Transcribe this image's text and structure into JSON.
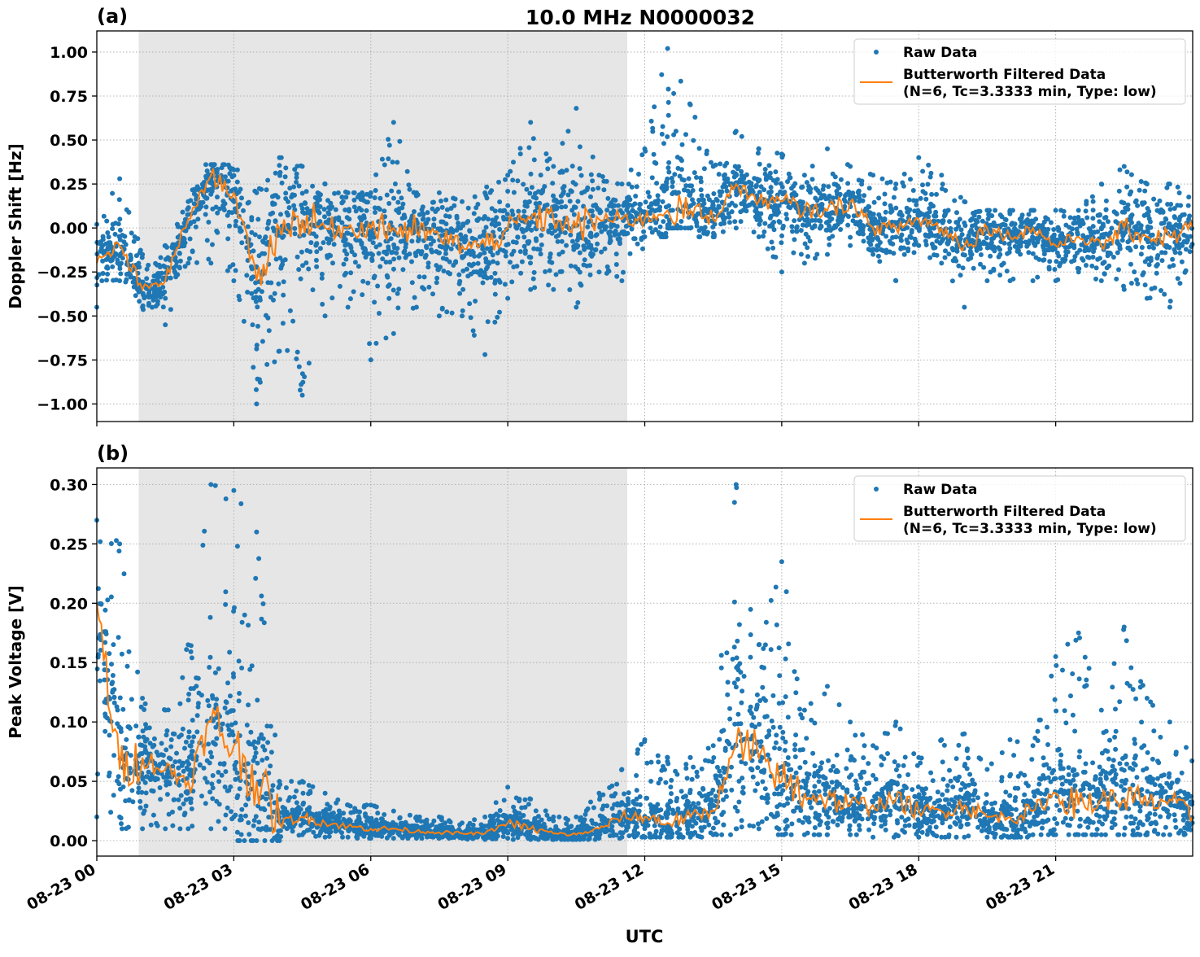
{
  "figure": {
    "title": "10.0 MHz N0000032",
    "xlabel": "UTC"
  },
  "colors": {
    "raw": "#1f77b4",
    "filtered": "#ff7f0e",
    "shade": "#e6e6e6",
    "grid": "#b0b0b0"
  },
  "chart_data": [
    {
      "panel_label": "(a)",
      "type": "scatter+line",
      "ylabel": "Doppler Shift [Hz]",
      "ylim": [
        -1.1,
        1.12
      ],
      "yticks": [
        "−1.00",
        "−0.75",
        "−0.50",
        "−0.25",
        "0.00",
        "0.25",
        "0.50",
        "0.75",
        "1.00"
      ],
      "ytick_values": [
        -1,
        -0.75,
        -0.5,
        -0.25,
        0,
        0.25,
        0.5,
        0.75,
        1
      ],
      "xlim": [
        "08-23 00:00",
        "08-24 00:00"
      ],
      "xticks": [
        "08-23 00",
        "08-23 03",
        "08-23 06",
        "08-23 09",
        "08-23 12",
        "08-23 15",
        "08-23 18",
        "08-23 21"
      ],
      "grid": true,
      "shaded_span": [
        "08-23 00:55",
        "08-23 11:37"
      ],
      "legend": {
        "placement": "top-right",
        "entries": [
          "Raw Data",
          "Butterworth Filtered Data",
          "(N=6, Tc=3.3333 min, Type: low)"
        ]
      },
      "x": [
        "08-23 00:00",
        "08-23 00:30",
        "08-23 01:00",
        "08-23 01:30",
        "08-23 02:00",
        "08-23 02:30",
        "08-23 03:00",
        "08-23 03:30",
        "08-23 04:00",
        "08-23 04:30",
        "08-23 05:00",
        "08-23 05:30",
        "08-23 06:00",
        "08-23 06:30",
        "08-23 07:00",
        "08-23 07:30",
        "08-23 08:00",
        "08-23 08:30",
        "08-23 09:00",
        "08-23 09:30",
        "08-23 10:00",
        "08-23 10:30",
        "08-23 11:00",
        "08-23 11:30",
        "08-23 12:00",
        "08-23 12:30",
        "08-23 13:00",
        "08-23 13:30",
        "08-23 14:00",
        "08-23 14:30",
        "08-23 15:00",
        "08-23 15:30",
        "08-23 16:00",
        "08-23 16:30",
        "08-23 17:00",
        "08-23 17:30",
        "08-23 18:00",
        "08-23 18:30",
        "08-23 19:00",
        "08-23 19:30",
        "08-23 20:00",
        "08-23 20:30",
        "08-23 21:00",
        "08-23 21:30",
        "08-23 22:00",
        "08-23 22:30",
        "08-23 23:00",
        "08-23 23:30",
        "08-24 00:00"
      ],
      "series": [
        {
          "name": "Butterworth Filtered Data",
          "kind": "line",
          "values": [
            -0.2,
            -0.1,
            -0.35,
            -0.3,
            0.05,
            0.3,
            0.2,
            -0.3,
            0.0,
            0.05,
            0.0,
            0.0,
            0.0,
            0.0,
            -0.02,
            -0.05,
            -0.1,
            -0.1,
            0.0,
            0.05,
            0.05,
            0.0,
            0.05,
            0.05,
            0.05,
            0.1,
            0.1,
            0.05,
            0.25,
            0.15,
            0.15,
            0.1,
            0.1,
            0.15,
            0.0,
            0.0,
            0.05,
            0.0,
            -0.1,
            0.0,
            -0.05,
            0.0,
            -0.1,
            -0.05,
            -0.1,
            0.0,
            -0.05,
            -0.05,
            0.0
          ]
        },
        {
          "name": "Raw Data",
          "kind": "scatter-range",
          "min": [
            -0.45,
            -0.3,
            -0.45,
            -0.55,
            -0.2,
            -0.2,
            -0.3,
            -1.0,
            -0.7,
            -0.95,
            -0.5,
            -0.45,
            -0.75,
            -0.6,
            -0.45,
            -0.5,
            -0.5,
            -0.72,
            -0.4,
            -0.35,
            -0.35,
            -0.45,
            -0.25,
            -0.3,
            -0.05,
            0.0,
            0.0,
            -0.05,
            0.0,
            -0.05,
            -0.25,
            -0.2,
            -0.15,
            -0.1,
            -0.15,
            -0.3,
            -0.1,
            -0.2,
            -0.45,
            -0.3,
            -0.3,
            -0.3,
            -0.3,
            -0.25,
            -0.3,
            -0.35,
            -0.4,
            -0.45,
            -0.4
          ],
          "max": [
            0.02,
            0.28,
            -0.15,
            -0.1,
            0.15,
            0.36,
            0.33,
            0.2,
            0.4,
            0.35,
            0.25,
            0.2,
            0.2,
            0.6,
            0.2,
            0.2,
            0.15,
            0.2,
            0.3,
            0.6,
            0.35,
            0.68,
            0.3,
            0.25,
            0.45,
            1.02,
            0.7,
            0.35,
            0.55,
            0.45,
            0.42,
            0.3,
            0.45,
            0.35,
            0.3,
            0.25,
            0.4,
            0.3,
            0.15,
            0.1,
            0.1,
            0.1,
            0.1,
            0.1,
            0.25,
            0.35,
            0.25,
            0.25,
            0.2
          ]
        }
      ]
    },
    {
      "panel_label": "(b)",
      "type": "scatter+line",
      "ylabel": "Peak Voltage [V]",
      "ylim": [
        -0.013,
        0.314
      ],
      "yticks": [
        "0.00",
        "0.05",
        "0.10",
        "0.15",
        "0.20",
        "0.25",
        "0.30"
      ],
      "ytick_values": [
        0,
        0.05,
        0.1,
        0.15,
        0.2,
        0.25,
        0.3
      ],
      "xlim": [
        "08-23 00:00",
        "08-24 00:00"
      ],
      "xticks": [
        "08-23 00",
        "08-23 03",
        "08-23 06",
        "08-23 09",
        "08-23 12",
        "08-23 15",
        "08-23 18",
        "08-23 21"
      ],
      "grid": true,
      "shaded_span": [
        "08-23 00:55",
        "08-23 11:37"
      ],
      "legend": {
        "placement": "top-right",
        "entries": [
          "Raw Data",
          "Butterworth Filtered Data",
          "(N=6, Tc=3.3333 min, Type: low)"
        ]
      },
      "x": [
        "08-23 00:00",
        "08-23 00:30",
        "08-23 01:00",
        "08-23 01:30",
        "08-23 02:00",
        "08-23 02:30",
        "08-23 03:00",
        "08-23 03:30",
        "08-23 04:00",
        "08-23 04:30",
        "08-23 05:00",
        "08-23 05:30",
        "08-23 06:00",
        "08-23 06:30",
        "08-23 07:00",
        "08-23 07:30",
        "08-23 08:00",
        "08-23 08:30",
        "08-23 09:00",
        "08-23 09:30",
        "08-23 10:00",
        "08-23 10:30",
        "08-23 11:00",
        "08-23 11:30",
        "08-23 12:00",
        "08-23 12:30",
        "08-23 13:00",
        "08-23 13:30",
        "08-23 14:00",
        "08-23 14:30",
        "08-23 15:00",
        "08-23 15:30",
        "08-23 16:00",
        "08-23 16:30",
        "08-23 17:00",
        "08-23 17:30",
        "08-23 18:00",
        "08-23 18:30",
        "08-23 19:00",
        "08-23 19:30",
        "08-23 20:00",
        "08-23 20:30",
        "08-23 21:00",
        "08-23 21:30",
        "08-23 22:00",
        "08-23 22:30",
        "08-23 23:00",
        "08-23 23:30",
        "08-24 00:00"
      ],
      "series": [
        {
          "name": "Butterworth Filtered Data",
          "kind": "line",
          "values": [
            0.2,
            0.06,
            0.07,
            0.06,
            0.05,
            0.1,
            0.08,
            0.05,
            0.015,
            0.02,
            0.015,
            0.012,
            0.01,
            0.01,
            0.008,
            0.007,
            0.006,
            0.006,
            0.015,
            0.01,
            0.006,
            0.005,
            0.01,
            0.02,
            0.02,
            0.015,
            0.02,
            0.025,
            0.08,
            0.07,
            0.05,
            0.04,
            0.035,
            0.03,
            0.03,
            0.035,
            0.025,
            0.025,
            0.03,
            0.02,
            0.02,
            0.025,
            0.04,
            0.03,
            0.035,
            0.035,
            0.03,
            0.035,
            0.02
          ]
        },
        {
          "name": "Raw Data",
          "kind": "scatter-range",
          "min": [
            0.02,
            0.02,
            0.01,
            0.01,
            0.01,
            0.01,
            0.02,
            0.0,
            0.0,
            0.005,
            0.003,
            0.003,
            0.002,
            0.002,
            0.002,
            0.002,
            0.002,
            0.001,
            0.002,
            0.001,
            0.001,
            0.001,
            0.002,
            0.003,
            0.003,
            0.003,
            0.003,
            0.005,
            0.01,
            0.01,
            0.005,
            0.005,
            0.005,
            0.005,
            0.003,
            0.005,
            0.003,
            0.003,
            0.003,
            0.003,
            0.003,
            0.005,
            0.005,
            0.005,
            0.005,
            0.005,
            0.005,
            0.005,
            0.005
          ],
          "max": [
            0.27,
            0.25,
            0.12,
            0.11,
            0.165,
            0.3,
            0.295,
            0.26,
            0.05,
            0.05,
            0.04,
            0.03,
            0.03,
            0.025,
            0.02,
            0.02,
            0.015,
            0.02,
            0.045,
            0.035,
            0.02,
            0.02,
            0.04,
            0.06,
            0.085,
            0.07,
            0.07,
            0.08,
            0.3,
            0.165,
            0.235,
            0.11,
            0.13,
            0.1,
            0.08,
            0.1,
            0.07,
            0.085,
            0.09,
            0.06,
            0.085,
            0.08,
            0.155,
            0.175,
            0.11,
            0.18,
            0.12,
            0.1,
            0.07
          ]
        }
      ]
    }
  ]
}
